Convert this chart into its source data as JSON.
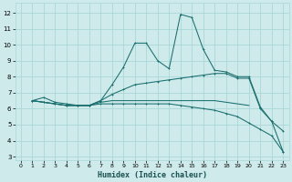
{
  "xlabel": "Humidex (Indice chaleur)",
  "xlim": [
    -0.5,
    23.5
  ],
  "ylim": [
    2.8,
    12.6
  ],
  "yticks": [
    3,
    4,
    5,
    6,
    7,
    8,
    9,
    10,
    11,
    12
  ],
  "xticks": [
    0,
    1,
    2,
    3,
    4,
    5,
    6,
    7,
    8,
    9,
    10,
    11,
    12,
    13,
    14,
    15,
    16,
    17,
    18,
    19,
    20,
    21,
    22,
    23
  ],
  "bg_color": "#ceeaea",
  "grid_color": "#a8d8d8",
  "line_color": "#1a6e6e",
  "line1_x": [
    1,
    2,
    3,
    4,
    5,
    6,
    7,
    8,
    9,
    10,
    11,
    12,
    13,
    14,
    15,
    16,
    17,
    18,
    19,
    20,
    21,
    22,
    23
  ],
  "line1_y": [
    6.5,
    6.7,
    6.4,
    6.3,
    6.2,
    6.2,
    6.5,
    7.5,
    8.6,
    10.1,
    10.1,
    9.0,
    8.5,
    11.9,
    11.7,
    9.7,
    8.4,
    8.3,
    8.0,
    8.0,
    6.1,
    5.2,
    4.6
  ],
  "line2_x": [
    1,
    2,
    3,
    4,
    5,
    6,
    7,
    8,
    9,
    10,
    11,
    12,
    13,
    14,
    15,
    16,
    17,
    18,
    19,
    20,
    21,
    22,
    23
  ],
  "line2_y": [
    6.5,
    6.4,
    6.3,
    6.2,
    6.2,
    6.2,
    6.5,
    6.9,
    7.2,
    7.5,
    7.6,
    7.7,
    7.8,
    7.9,
    8.0,
    8.1,
    8.2,
    8.2,
    7.9,
    7.9,
    6.0,
    5.2,
    3.3
  ],
  "line3_x": [
    1,
    2,
    3,
    4,
    5,
    6,
    7,
    8,
    9,
    10,
    11,
    12,
    13,
    14,
    15,
    16,
    17,
    18,
    19,
    20
  ],
  "line3_y": [
    6.5,
    6.4,
    6.3,
    6.2,
    6.2,
    6.2,
    6.4,
    6.5,
    6.5,
    6.5,
    6.5,
    6.5,
    6.5,
    6.5,
    6.5,
    6.5,
    6.5,
    6.4,
    6.3,
    6.2
  ],
  "line4_x": [
    1,
    2,
    3,
    4,
    5,
    6,
    7,
    8,
    9,
    10,
    11,
    12,
    13,
    14,
    15,
    16,
    17,
    18,
    19,
    20,
    21,
    22,
    23
  ],
  "line4_y": [
    6.5,
    6.4,
    6.3,
    6.2,
    6.2,
    6.2,
    6.3,
    6.3,
    6.3,
    6.3,
    6.3,
    6.3,
    6.3,
    6.2,
    6.1,
    6.0,
    5.9,
    5.7,
    5.5,
    5.1,
    4.7,
    4.3,
    3.3
  ]
}
